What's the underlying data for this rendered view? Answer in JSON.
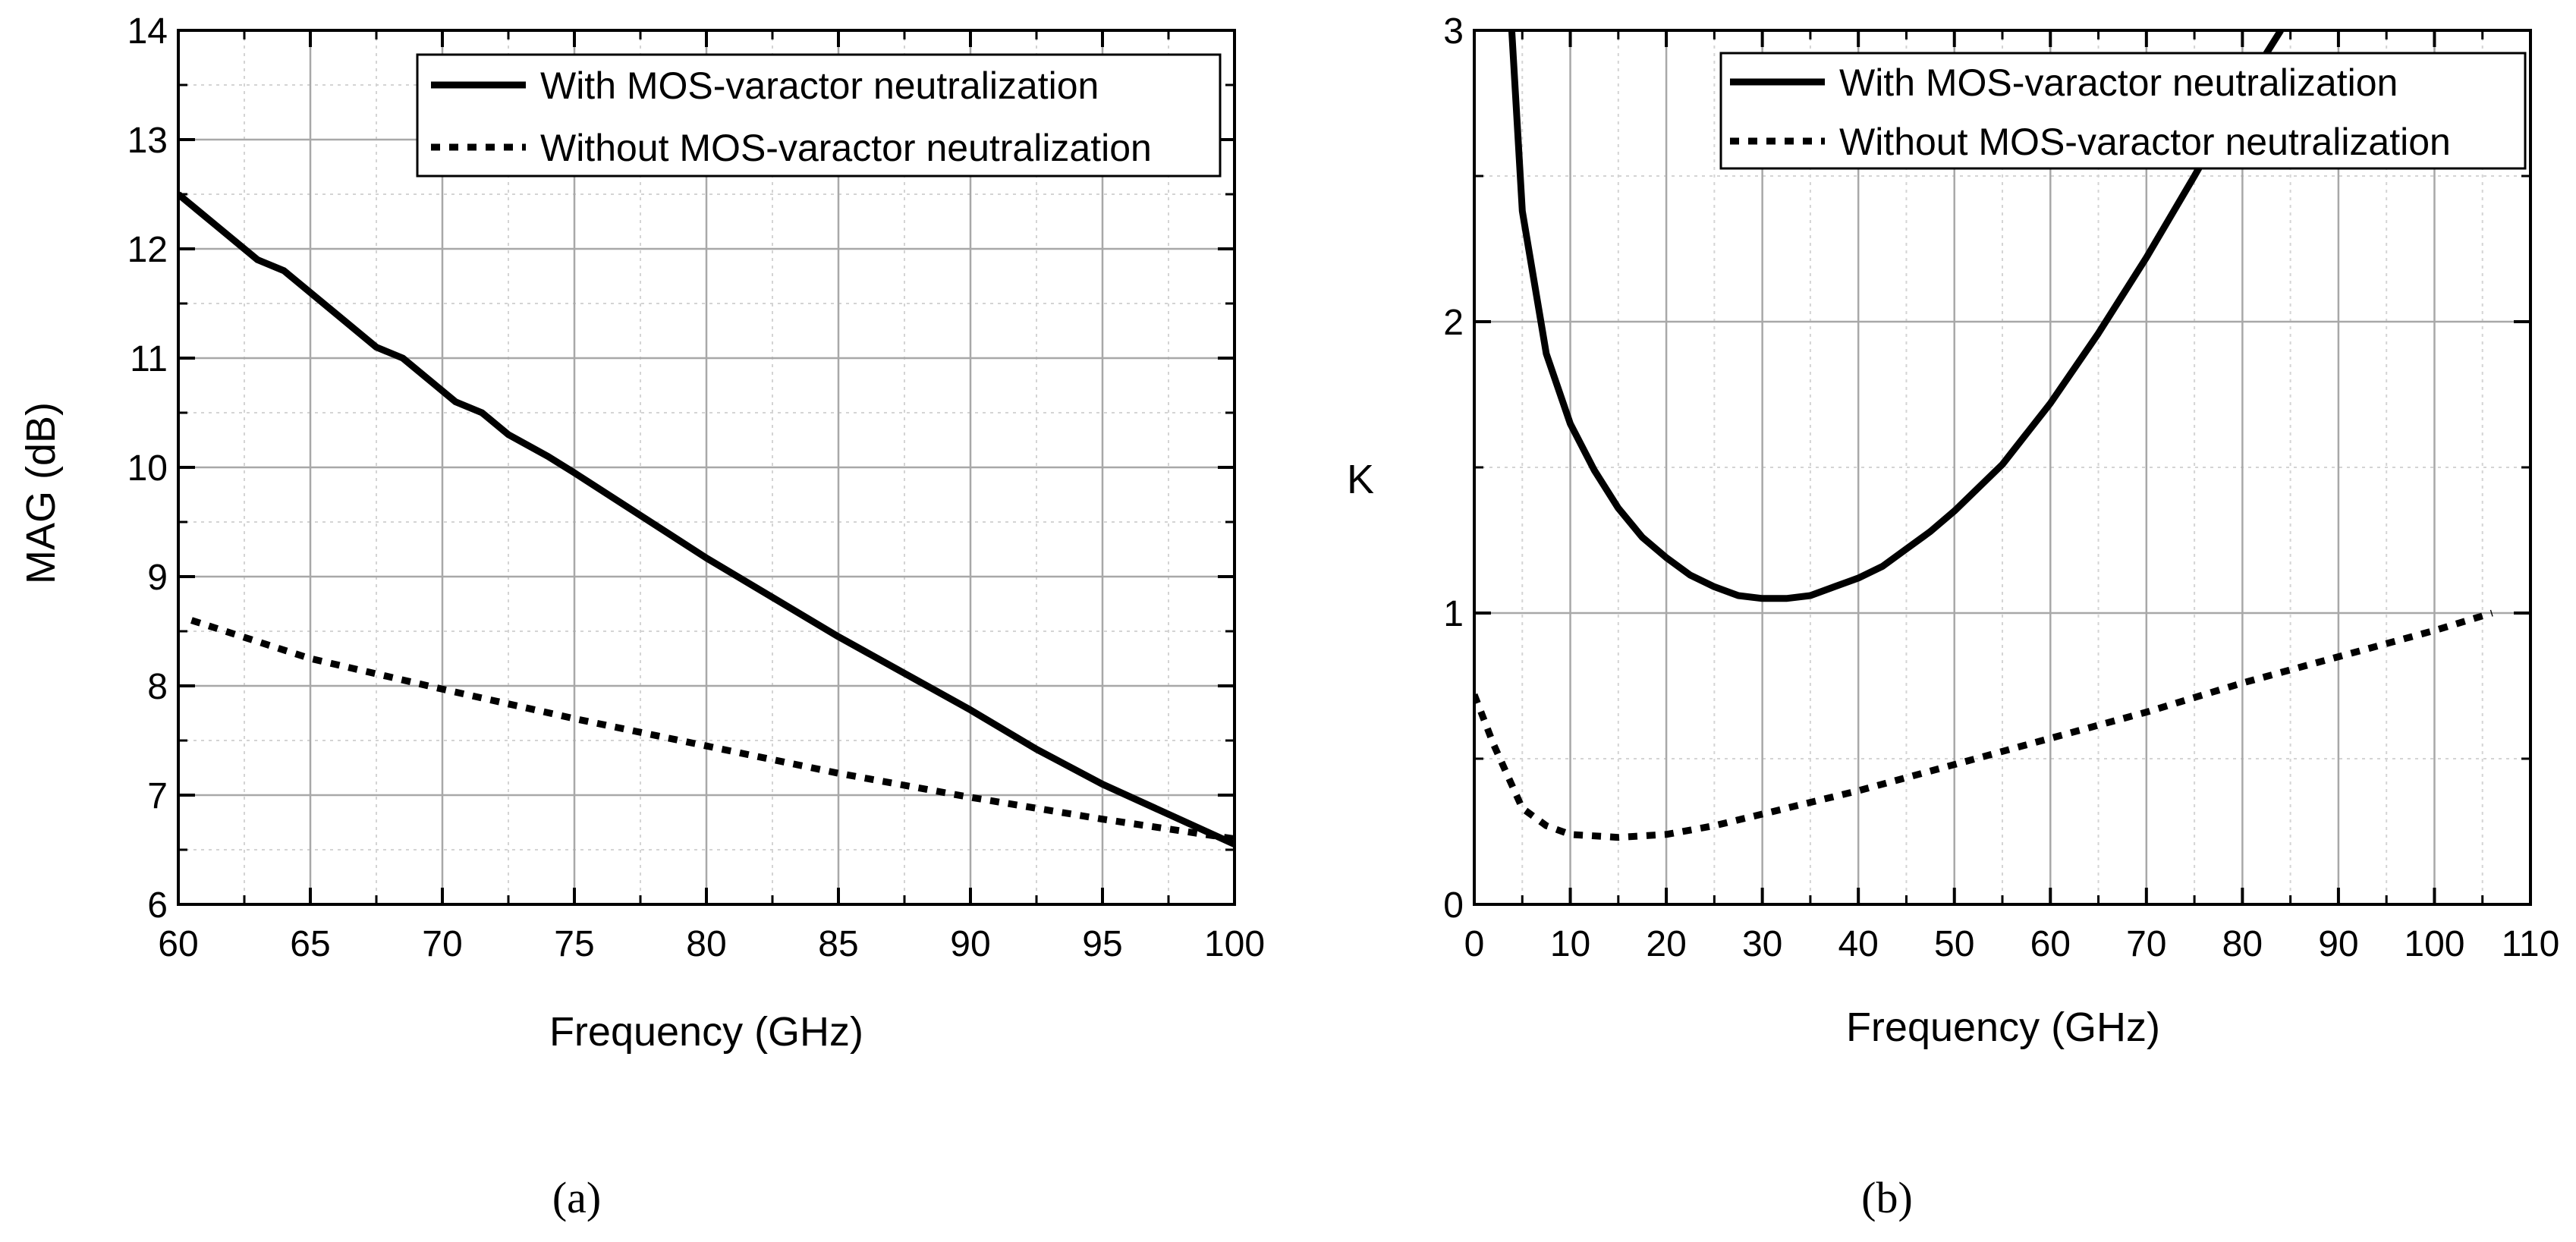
{
  "figure": {
    "panels": [
      {
        "caption": "(a)"
      },
      {
        "caption": "(b)"
      }
    ]
  },
  "chart_data": [
    {
      "type": "line",
      "panel": "(a)",
      "title": "",
      "xlabel": "Frequency (GHz)",
      "ylabel": "MAG (dB)",
      "xlim": [
        60,
        100
      ],
      "ylim": [
        6,
        14
      ],
      "xticks": [
        60,
        65,
        70,
        75,
        80,
        85,
        90,
        95,
        100
      ],
      "yticks": [
        6,
        7,
        8,
        9,
        10,
        11,
        12,
        13,
        14
      ],
      "xminor": 2.5,
      "yminor": 0.5,
      "grid": true,
      "legend_position": "top-right",
      "series": [
        {
          "name": "With MOS-varactor neutralization",
          "style": "solid",
          "x": [
            60,
            61.5,
            63,
            64,
            66,
            67.5,
            68.5,
            70.5,
            71.5,
            72.5,
            74,
            75,
            80,
            85,
            90,
            92.5,
            95,
            100
          ],
          "y": [
            12.5,
            12.2,
            11.9,
            11.8,
            11.4,
            11.1,
            11.0,
            10.6,
            10.5,
            10.3,
            10.1,
            9.95,
            9.17,
            8.45,
            7.78,
            7.42,
            7.1,
            6.55
          ]
        },
        {
          "name": "Without MOS-varactor neutralization",
          "style": "dotted",
          "x": [
            60.5,
            65,
            70,
            75,
            80,
            85,
            90,
            95,
            100
          ],
          "y": [
            8.6,
            8.25,
            7.97,
            7.7,
            7.45,
            7.2,
            6.98,
            6.78,
            6.6
          ]
        }
      ]
    },
    {
      "type": "line",
      "panel": "(b)",
      "title": "",
      "xlabel": "Frequency (GHz)",
      "ylabel": "K",
      "xlim": [
        0,
        110
      ],
      "ylim": [
        0,
        3
      ],
      "xticks": [
        0,
        10,
        20,
        30,
        40,
        50,
        60,
        70,
        80,
        90,
        100,
        110
      ],
      "yticks": [
        0,
        1,
        2,
        3
      ],
      "xminor": 5,
      "yminor": 0.5,
      "grid": true,
      "legend_position": "top",
      "series": [
        {
          "name": "With MOS-varactor neutralization",
          "style": "solid",
          "x": [
            3.9,
            5,
            7.5,
            10,
            12.5,
            15,
            17.5,
            20,
            22.5,
            25,
            27.5,
            30,
            32.5,
            35,
            37.5,
            40,
            42.5,
            45,
            47.5,
            50,
            55,
            60,
            65,
            70,
            75,
            80,
            84
          ],
          "y": [
            3.0,
            2.38,
            1.89,
            1.65,
            1.49,
            1.36,
            1.26,
            1.19,
            1.13,
            1.09,
            1.06,
            1.05,
            1.05,
            1.06,
            1.09,
            1.12,
            1.16,
            1.22,
            1.28,
            1.35,
            1.51,
            1.72,
            1.96,
            2.22,
            2.5,
            2.79,
            3.0
          ]
        },
        {
          "name": "Without MOS-varactor neutralization",
          "style": "dotted",
          "x": [
            0,
            2,
            5,
            7.5,
            10,
            15,
            20,
            25,
            30,
            35,
            40,
            50,
            60,
            70,
            80,
            90,
            100,
            106
          ],
          "y": [
            0.72,
            0.55,
            0.33,
            0.27,
            0.24,
            0.23,
            0.24,
            0.27,
            0.31,
            0.35,
            0.39,
            0.48,
            0.57,
            0.66,
            0.76,
            0.85,
            0.94,
            1.0
          ]
        }
      ]
    }
  ]
}
